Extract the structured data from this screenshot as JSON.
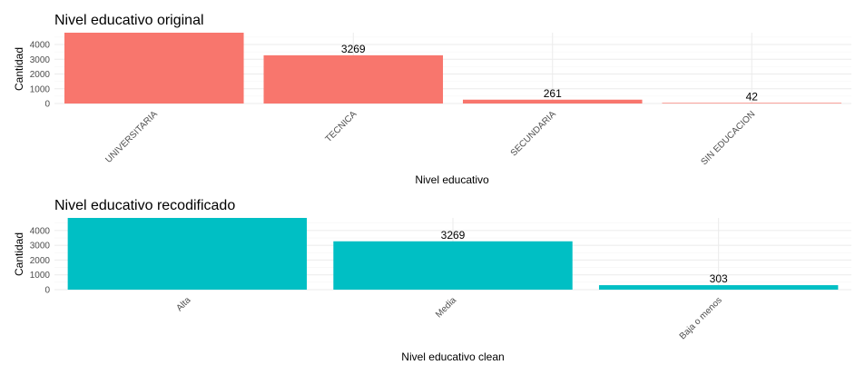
{
  "chart_data": [
    {
      "type": "bar",
      "title": "Nivel educativo original",
      "xlabel": "Nivel educativo",
      "ylabel": "Cantidad",
      "categories": [
        "UNIVERSITARIA",
        "TECNICA",
        "SECUNDARIA",
        "SIN EDUCACION"
      ],
      "values": [
        4800,
        3269,
        261,
        42
      ],
      "data_labels": [
        "",
        "3269",
        "261",
        "42"
      ],
      "y_ticks": [
        0,
        1000,
        2000,
        3000,
        4000
      ],
      "ylim": [
        0,
        4800
      ],
      "color": "#F8766D",
      "legend": "none"
    },
    {
      "type": "bar",
      "title": "Nivel educativo recodificado",
      "xlabel": "Nivel educativo clean",
      "ylabel": "Cantidad",
      "categories": [
        "Alta",
        "Media",
        "Baja o menos"
      ],
      "values": [
        4850,
        3269,
        303
      ],
      "data_labels": [
        "",
        "3269",
        "303"
      ],
      "y_ticks": [
        0,
        1000,
        2000,
        3000,
        4000
      ],
      "ylim": [
        0,
        4850
      ],
      "color": "#00BFC4",
      "legend": "none"
    }
  ]
}
